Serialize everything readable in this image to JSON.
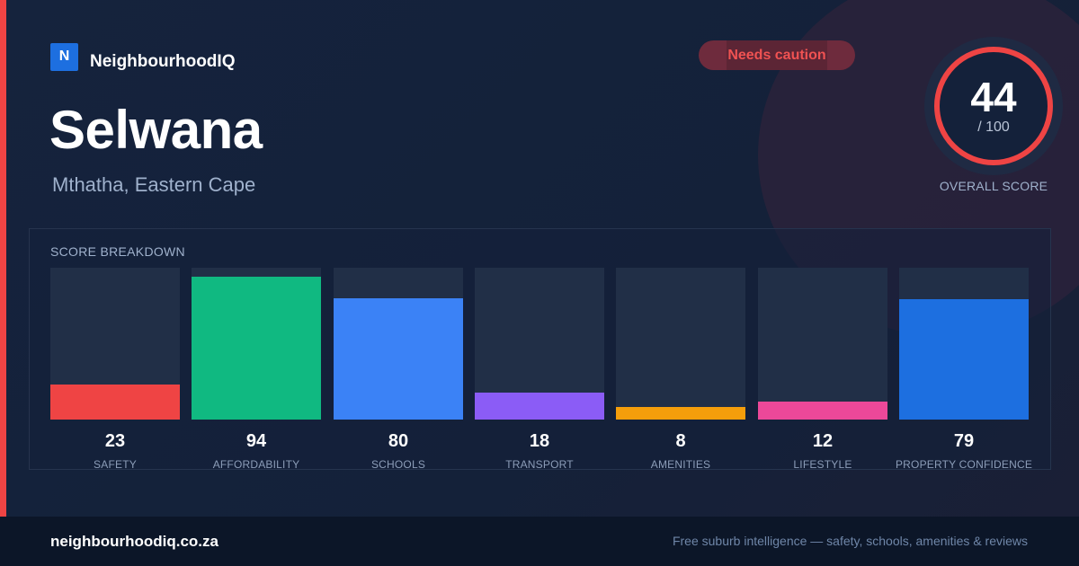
{
  "brand": {
    "logo_letter": "N",
    "name": "NeighbourhoodIQ"
  },
  "status_badge": {
    "label": "Needs caution",
    "color": "#f05252"
  },
  "suburb": {
    "name": "Selwana",
    "location": "Mthatha, Eastern Cape"
  },
  "overall": {
    "score": 44,
    "score_text": "44",
    "denominator": "/ 100",
    "max": 100,
    "label": "OVERALL SCORE",
    "ring_color": "#ef4444"
  },
  "breakdown": {
    "title": "SCORE BREAKDOWN",
    "items": [
      {
        "label": "SAFETY",
        "value": 23,
        "value_text": "23",
        "color": "#ef4444"
      },
      {
        "label": "AFFORDABILITY",
        "value": 94,
        "value_text": "94",
        "color": "#10b981"
      },
      {
        "label": "SCHOOLS",
        "value": 80,
        "value_text": "80",
        "color": "#3b82f6"
      },
      {
        "label": "TRANSPORT",
        "value": 18,
        "value_text": "18",
        "color": "#8b5cf6"
      },
      {
        "label": "AMENITIES",
        "value": 8,
        "value_text": "8",
        "color": "#f59e0b"
      },
      {
        "label": "LIFESTYLE",
        "value": 12,
        "value_text": "12",
        "color": "#ec4899"
      },
      {
        "label": "PROPERTY CONFIDENCE",
        "value": 79,
        "value_text": "79",
        "color": "#1d6fe0"
      }
    ]
  },
  "footer": {
    "domain": "neighbourhoodiq.co.za",
    "tagline": "Free suburb intelligence — safety, schools, amenities & reviews"
  }
}
